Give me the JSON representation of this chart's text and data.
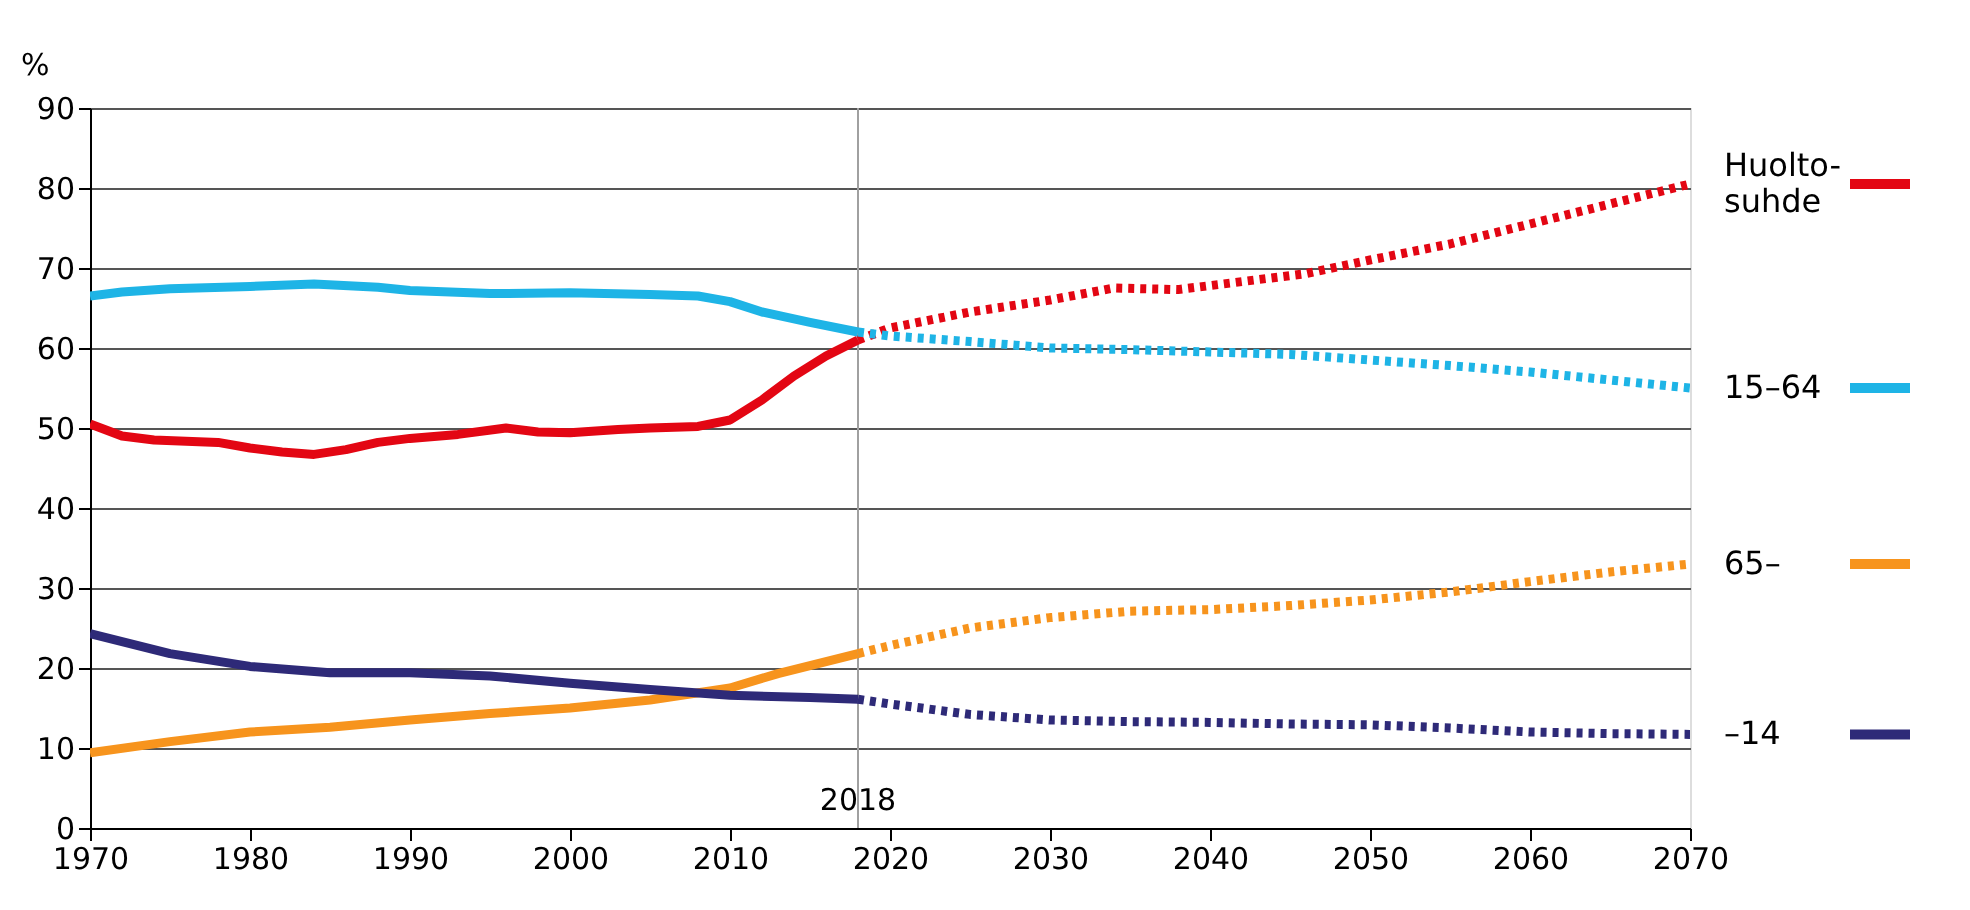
{
  "chart_data": {
    "type": "line",
    "ylabel": "%",
    "xlim": [
      1970,
      2070
    ],
    "xticks": [
      1970,
      1980,
      1990,
      2000,
      2010,
      2020,
      2030,
      2040,
      2050,
      2060,
      2070
    ],
    "ylim": [
      0,
      90
    ],
    "yticks": [
      0,
      10,
      20,
      30,
      40,
      50,
      60,
      70,
      80,
      90
    ],
    "grid": "y",
    "legend": "right",
    "ref_lines": [
      {
        "axis": "x",
        "value": 2018,
        "label": "2018",
        "color": "#a0a0a0"
      }
    ],
    "series": [
      {
        "name": "Huolto-\nsuhde",
        "color": "#e30613",
        "line_style": "solid",
        "x": [
          1970,
          1972,
          1974,
          1978,
          1980,
          1982,
          1984,
          1986,
          1988,
          1990,
          1993,
          1996,
          1998,
          2000,
          2003,
          2005,
          2008,
          2010,
          2012,
          2014,
          2016,
          2018
        ],
        "values": [
          50.5,
          49,
          48.5,
          48.2,
          47.5,
          47,
          46.7,
          47.3,
          48.2,
          48.7,
          49.2,
          50,
          49.5,
          49.4,
          49.8,
          50,
          50.2,
          51,
          53.5,
          56.5,
          59,
          61
        ]
      },
      {
        "color": "#e30613",
        "line_style": "dotted",
        "x": [
          2018,
          2020,
          2025,
          2030,
          2034,
          2038,
          2042,
          2046,
          2050,
          2055,
          2060,
          2065,
          2070
        ],
        "values": [
          61,
          62.5,
          64.5,
          66,
          67.5,
          67.3,
          68.3,
          69.3,
          71,
          73,
          75.5,
          78,
          80.5
        ]
      },
      {
        "name": "15–64",
        "color": "#1eb4e6",
        "line_style": "solid",
        "x": [
          1970,
          1972,
          1975,
          1980,
          1984,
          1988,
          1990,
          1995,
          2000,
          2005,
          2008,
          2010,
          2012,
          2015,
          2018
        ],
        "values": [
          66.5,
          67,
          67.4,
          67.7,
          68,
          67.6,
          67.2,
          66.8,
          66.9,
          66.7,
          66.5,
          65.8,
          64.5,
          63.2,
          62
        ]
      },
      {
        "color": "#1eb4e6",
        "line_style": "dotted",
        "x": [
          2018,
          2020,
          2025,
          2030,
          2035,
          2040,
          2045,
          2050,
          2055,
          2060,
          2065,
          2070
        ],
        "values": [
          62,
          61.5,
          60.8,
          60,
          59.8,
          59.5,
          59.2,
          58.5,
          57.8,
          57,
          56,
          55
        ]
      },
      {
        "name": "65–",
        "color": "#f7941d",
        "line_style": "solid",
        "x": [
          1970,
          1975,
          1980,
          1985,
          1990,
          1995,
          2000,
          2005,
          2010,
          2013,
          2016,
          2018
        ],
        "values": [
          9.4,
          10.8,
          12,
          12.6,
          13.5,
          14.3,
          15,
          16,
          17.5,
          19.3,
          20.8,
          21.8
        ]
      },
      {
        "color": "#f7941d",
        "line_style": "dotted",
        "x": [
          2018,
          2020,
          2025,
          2030,
          2035,
          2040,
          2045,
          2050,
          2055,
          2060,
          2065,
          2070
        ],
        "values": [
          21.8,
          22.8,
          25,
          26.3,
          27.1,
          27.3,
          27.8,
          28.5,
          29.5,
          30.8,
          32,
          33
        ]
      },
      {
        "name": "–14",
        "color": "#2e2a78",
        "line_style": "solid",
        "x": [
          1970,
          1975,
          1980,
          1985,
          1990,
          1995,
          2000,
          2005,
          2010,
          2015,
          2018
        ],
        "values": [
          24.3,
          21.8,
          20.2,
          19.4,
          19.4,
          19,
          18.1,
          17.3,
          16.6,
          16.3,
          16.1
        ]
      },
      {
        "color": "#2e2a78",
        "line_style": "dotted",
        "x": [
          2018,
          2020,
          2025,
          2030,
          2035,
          2040,
          2045,
          2050,
          2055,
          2060,
          2065,
          2070
        ],
        "values": [
          16.1,
          15.5,
          14.2,
          13.5,
          13.3,
          13.2,
          13,
          12.9,
          12.5,
          12,
          11.8,
          11.7
        ]
      }
    ]
  }
}
